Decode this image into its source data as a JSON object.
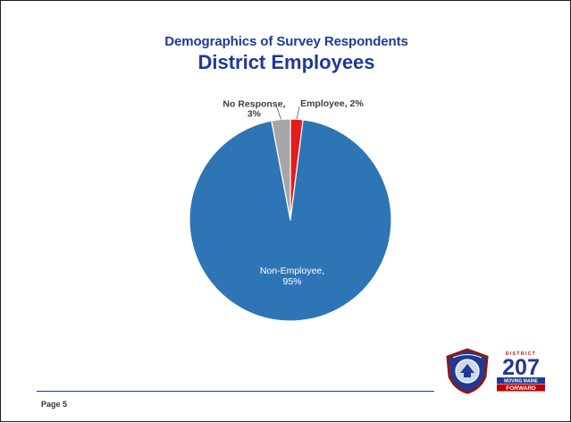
{
  "title": "Demographics of Survey Respondents",
  "subtitle": "District Employees",
  "footer": {
    "page_label": "Page 5"
  },
  "logo": {
    "top_text": "DISTRICT",
    "number": "207",
    "line1": "MOVING MAINE",
    "line2": "FORWARD"
  },
  "chart_data": {
    "type": "pie",
    "title": "Demographics of Survey Respondents",
    "subtitle": "District Employees",
    "start_angle": "12 o'clock, clockwise",
    "slices": [
      {
        "label": "Employee",
        "value": 2,
        "label_text": "Employee, 2%",
        "color": "#e31c1c"
      },
      {
        "label": "Non-Employee",
        "value": 95,
        "label_text_line1": "Non-Employee,",
        "label_text_line2": "95%",
        "color": "#2e75b6"
      },
      {
        "label": "No Response",
        "value": 3,
        "label_text_line1": "No Response,",
        "label_text_line2": "3%",
        "color": "#a6a6a6"
      }
    ]
  }
}
